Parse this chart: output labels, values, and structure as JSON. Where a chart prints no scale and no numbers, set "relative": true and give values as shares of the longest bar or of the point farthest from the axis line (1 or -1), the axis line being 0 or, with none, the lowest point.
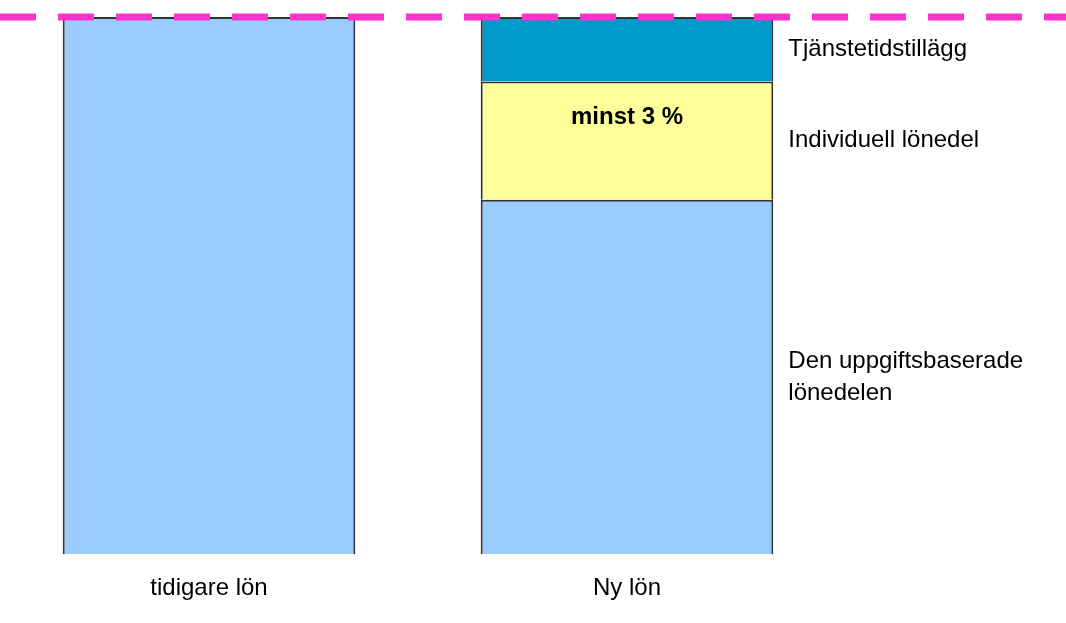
{
  "chart_data": {
    "type": "bar",
    "stacked": true,
    "relative": true,
    "categories": [
      "tidigare lön",
      "Ny lön"
    ],
    "series": [
      {
        "name": "Den uppgiftsbaserade lönedelen",
        "color": "#99ccff",
        "values": [
          1,
          0.66
        ]
      },
      {
        "name": "Individuell lönedel",
        "color": "#ffff99",
        "values": [
          null,
          0.22
        ]
      },
      {
        "name": "Tjänstetidstillägg",
        "color": "#0099cc",
        "values": [
          null,
          0.12
        ]
      }
    ],
    "ref_lines": [
      {
        "axis": "y",
        "value": 1,
        "color": "#ff33cc",
        "line_style": "dashed"
      }
    ],
    "annotations": [
      "minst 3 %"
    ],
    "grid": false,
    "legend": false
  }
}
